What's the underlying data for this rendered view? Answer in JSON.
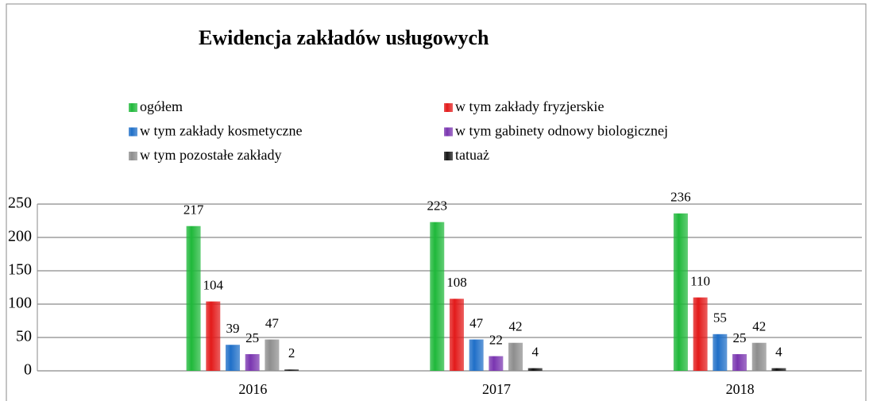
{
  "chart_data": {
    "type": "bar",
    "title": "Ewidencja zakładów usługowych",
    "categories": [
      "2016",
      "2017",
      "2018"
    ],
    "series": [
      {
        "name": "ogółem",
        "color": "#1fb83a",
        "values": [
          217,
          223,
          236
        ]
      },
      {
        "name": "w tym zakłady fryzjerskie",
        "color": "#e31a1a",
        "values": [
          104,
          108,
          110
        ]
      },
      {
        "name": "w tym zakłady kosmetyczne",
        "color": "#1f6fc8",
        "values": [
          39,
          47,
          55
        ]
      },
      {
        "name": "w tym gabinety odnowy biologicznej",
        "color": "#7a35b0",
        "values": [
          25,
          22,
          25
        ]
      },
      {
        "name": "w tym pozostałe zakłady",
        "color": "#8e8e8e",
        "values": [
          47,
          42,
          42
        ]
      },
      {
        "name": "tatuaż",
        "color": "#151515",
        "values": [
          2,
          4,
          4
        ]
      }
    ],
    "ylim": [
      0,
      250
    ],
    "yticks": [
      0,
      50,
      100,
      150,
      200,
      250
    ],
    "grid": true
  }
}
